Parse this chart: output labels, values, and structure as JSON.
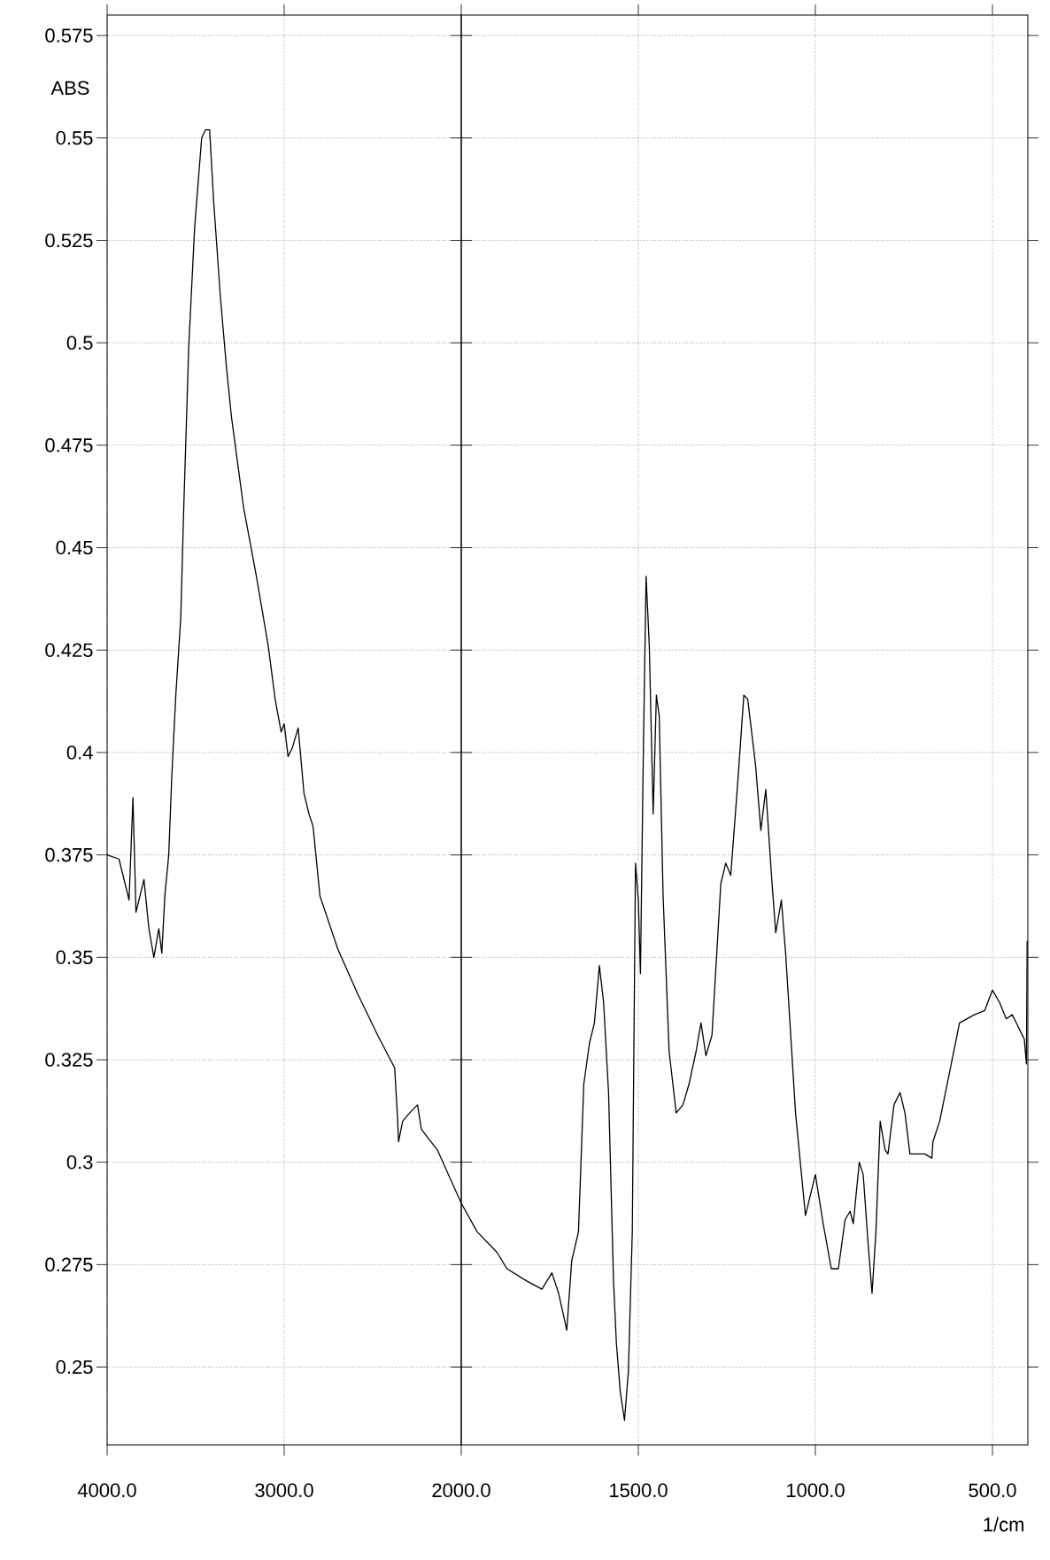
{
  "chart_data": [
    {
      "type": "line",
      "ylabel": "ABS",
      "tick_labels": true,
      "x": [
        4000,
        3933,
        3876,
        3854,
        3837,
        3792,
        3764,
        3736,
        3708,
        3691,
        3674,
        3652,
        3635,
        3612,
        3584,
        3567,
        3539,
        3506,
        3466,
        3444,
        3421,
        3399,
        3360,
        3326,
        3298,
        3230,
        3157,
        3090,
        3051,
        3017,
        3000,
        2978,
        2955,
        2921,
        2888,
        2860,
        2837,
        2798,
        2697,
        2584,
        2472,
        2376,
        2360,
        2354,
        2331,
        2292,
        2247,
        2225,
        2135,
        2000
      ],
      "series": [
        {
          "color": "#000000",
          "values": [
            0.375,
            0.374,
            0.364,
            0.389,
            0.361,
            0.369,
            0.357,
            0.35,
            0.357,
            0.351,
            0.365,
            0.375,
            0.394,
            0.414,
            0.433,
            0.46,
            0.499,
            0.528,
            0.55,
            0.552,
            0.552,
            0.535,
            0.511,
            0.494,
            0.482,
            0.46,
            0.443,
            0.426,
            0.413,
            0.405,
            0.407,
            0.399,
            0.401,
            0.406,
            0.39,
            0.385,
            0.382,
            0.365,
            0.352,
            0.341,
            0.331,
            0.323,
            0.311,
            0.305,
            0.31,
            0.312,
            0.314,
            0.308,
            0.303,
            0.29
          ]
        }
      ],
      "xlim": [
        4000,
        2000
      ],
      "ylim": [
        0.231,
        0.58
      ],
      "xticks": [
        {
          "value": 4000,
          "label": "4000.0"
        },
        {
          "value": 3000,
          "label": "3000.0"
        }
      ],
      "yticks": [
        0.25,
        0.275,
        0.3,
        0.325,
        0.35,
        0.375,
        0.4,
        0.425,
        0.45,
        0.475,
        0.5,
        0.525,
        0.55,
        0.575
      ],
      "grid": true
    },
    {
      "type": "line",
      "xlabel": "1/cm",
      "tick_labels": "x",
      "x": [
        2000,
        1955,
        1899,
        1871,
        1815,
        1772,
        1744,
        1725,
        1702,
        1688,
        1669,
        1654,
        1638,
        1624,
        1610,
        1598,
        1584,
        1570,
        1562,
        1551,
        1539,
        1528,
        1517,
        1508,
        1500,
        1494,
        1486,
        1478,
        1469,
        1458,
        1449,
        1441,
        1430,
        1413,
        1393,
        1374,
        1357,
        1337,
        1323,
        1309,
        1292,
        1267,
        1253,
        1239,
        1219,
        1202,
        1191,
        1169,
        1154,
        1140,
        1124,
        1112,
        1096,
        1084,
        1056,
        1028,
        1000,
        978,
        955,
        935,
        916,
        902,
        893,
        876,
        865,
        851,
        840,
        829,
        817,
        803,
        795,
        778,
        761,
        747,
        733,
        719,
        691,
        671,
        668,
        649,
        621,
        593,
        551,
        522,
        500,
        480,
        461,
        444,
        427,
        410,
        404,
        402
      ],
      "series": [
        {
          "color": "#000000",
          "values": [
            0.29,
            0.283,
            0.278,
            0.274,
            0.271,
            0.269,
            0.273,
            0.268,
            0.259,
            0.276,
            0.283,
            0.319,
            0.329,
            0.334,
            0.348,
            0.339,
            0.317,
            0.271,
            0.256,
            0.244,
            0.237,
            0.249,
            0.283,
            0.373,
            0.364,
            0.346,
            0.399,
            0.443,
            0.426,
            0.385,
            0.414,
            0.409,
            0.365,
            0.327,
            0.312,
            0.314,
            0.319,
            0.327,
            0.334,
            0.326,
            0.331,
            0.368,
            0.373,
            0.37,
            0.393,
            0.414,
            0.413,
            0.397,
            0.381,
            0.391,
            0.37,
            0.356,
            0.364,
            0.351,
            0.312,
            0.287,
            0.297,
            0.285,
            0.274,
            0.274,
            0.286,
            0.288,
            0.285,
            0.3,
            0.297,
            0.28,
            0.268,
            0.283,
            0.31,
            0.303,
            0.302,
            0.314,
            0.317,
            0.312,
            0.302,
            0.302,
            0.302,
            0.301,
            0.305,
            0.31,
            0.322,
            0.334,
            0.336,
            0.337,
            0.342,
            0.339,
            0.335,
            0.336,
            0.333,
            0.33,
            0.324,
            0.354
          ]
        }
      ],
      "xlim": [
        2000,
        400
      ],
      "ylim": [
        0.231,
        0.58
      ],
      "xticks": [
        {
          "value": 2000,
          "label": "2000.0"
        },
        {
          "value": 1500,
          "label": "1500.0"
        },
        {
          "value": 1000,
          "label": "1000.0"
        },
        {
          "value": 500,
          "label": "500.0"
        }
      ],
      "yticks": [
        0.25,
        0.275,
        0.3,
        0.325,
        0.35,
        0.375,
        0.4,
        0.425,
        0.45,
        0.475,
        0.5,
        0.525,
        0.55,
        0.575
      ],
      "grid": true
    }
  ]
}
